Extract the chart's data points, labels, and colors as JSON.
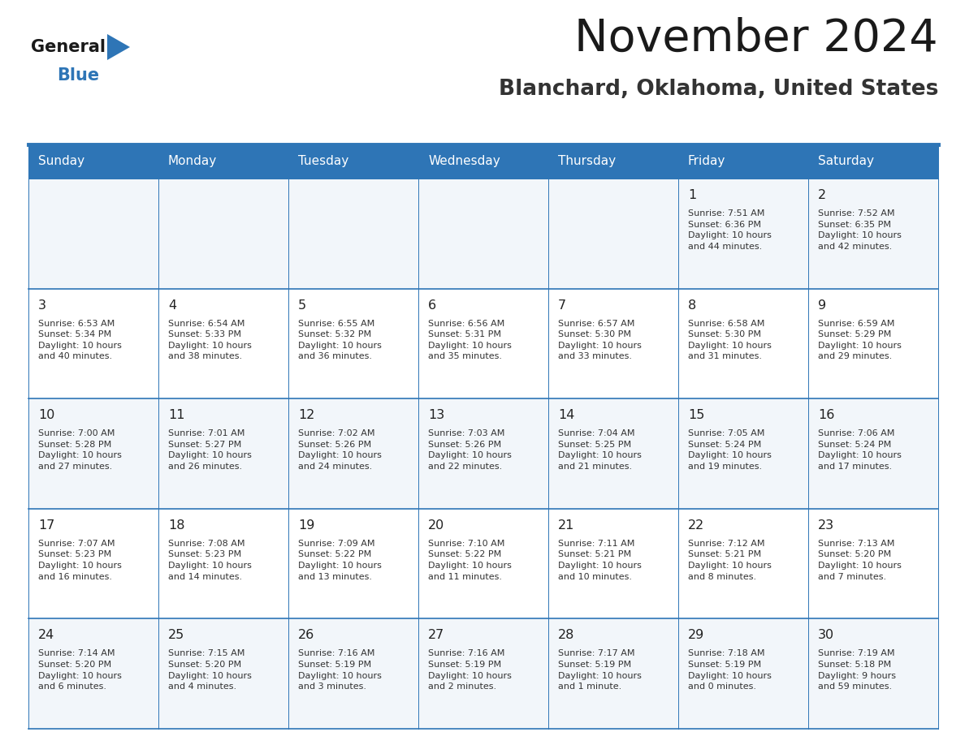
{
  "title": "November 2024",
  "subtitle": "Blanchard, Oklahoma, United States",
  "header_color": "#2E75B6",
  "header_text_color": "#FFFFFF",
  "border_color": "#2E75B6",
  "day_names": [
    "Sunday",
    "Monday",
    "Tuesday",
    "Wednesday",
    "Thursday",
    "Friday",
    "Saturday"
  ],
  "cell_text_color": "#333333",
  "num_rows": 5,
  "num_cols": 7,
  "logo_color": "#2E75B6",
  "calendar_data": [
    [
      "",
      "",
      "",
      "",
      "",
      "1\nSunrise: 7:51 AM\nSunset: 6:36 PM\nDaylight: 10 hours\nand 44 minutes.",
      "2\nSunrise: 7:52 AM\nSunset: 6:35 PM\nDaylight: 10 hours\nand 42 minutes."
    ],
    [
      "3\nSunrise: 6:53 AM\nSunset: 5:34 PM\nDaylight: 10 hours\nand 40 minutes.",
      "4\nSunrise: 6:54 AM\nSunset: 5:33 PM\nDaylight: 10 hours\nand 38 minutes.",
      "5\nSunrise: 6:55 AM\nSunset: 5:32 PM\nDaylight: 10 hours\nand 36 minutes.",
      "6\nSunrise: 6:56 AM\nSunset: 5:31 PM\nDaylight: 10 hours\nand 35 minutes.",
      "7\nSunrise: 6:57 AM\nSunset: 5:30 PM\nDaylight: 10 hours\nand 33 minutes.",
      "8\nSunrise: 6:58 AM\nSunset: 5:30 PM\nDaylight: 10 hours\nand 31 minutes.",
      "9\nSunrise: 6:59 AM\nSunset: 5:29 PM\nDaylight: 10 hours\nand 29 minutes."
    ],
    [
      "10\nSunrise: 7:00 AM\nSunset: 5:28 PM\nDaylight: 10 hours\nand 27 minutes.",
      "11\nSunrise: 7:01 AM\nSunset: 5:27 PM\nDaylight: 10 hours\nand 26 minutes.",
      "12\nSunrise: 7:02 AM\nSunset: 5:26 PM\nDaylight: 10 hours\nand 24 minutes.",
      "13\nSunrise: 7:03 AM\nSunset: 5:26 PM\nDaylight: 10 hours\nand 22 minutes.",
      "14\nSunrise: 7:04 AM\nSunset: 5:25 PM\nDaylight: 10 hours\nand 21 minutes.",
      "15\nSunrise: 7:05 AM\nSunset: 5:24 PM\nDaylight: 10 hours\nand 19 minutes.",
      "16\nSunrise: 7:06 AM\nSunset: 5:24 PM\nDaylight: 10 hours\nand 17 minutes."
    ],
    [
      "17\nSunrise: 7:07 AM\nSunset: 5:23 PM\nDaylight: 10 hours\nand 16 minutes.",
      "18\nSunrise: 7:08 AM\nSunset: 5:23 PM\nDaylight: 10 hours\nand 14 minutes.",
      "19\nSunrise: 7:09 AM\nSunset: 5:22 PM\nDaylight: 10 hours\nand 13 minutes.",
      "20\nSunrise: 7:10 AM\nSunset: 5:22 PM\nDaylight: 10 hours\nand 11 minutes.",
      "21\nSunrise: 7:11 AM\nSunset: 5:21 PM\nDaylight: 10 hours\nand 10 minutes.",
      "22\nSunrise: 7:12 AM\nSunset: 5:21 PM\nDaylight: 10 hours\nand 8 minutes.",
      "23\nSunrise: 7:13 AM\nSunset: 5:20 PM\nDaylight: 10 hours\nand 7 minutes."
    ],
    [
      "24\nSunrise: 7:14 AM\nSunset: 5:20 PM\nDaylight: 10 hours\nand 6 minutes.",
      "25\nSunrise: 7:15 AM\nSunset: 5:20 PM\nDaylight: 10 hours\nand 4 minutes.",
      "26\nSunrise: 7:16 AM\nSunset: 5:19 PM\nDaylight: 10 hours\nand 3 minutes.",
      "27\nSunrise: 7:16 AM\nSunset: 5:19 PM\nDaylight: 10 hours\nand 2 minutes.",
      "28\nSunrise: 7:17 AM\nSunset: 5:19 PM\nDaylight: 10 hours\nand 1 minute.",
      "29\nSunrise: 7:18 AM\nSunset: 5:19 PM\nDaylight: 10 hours\nand 0 minutes.",
      "30\nSunrise: 7:19 AM\nSunset: 5:18 PM\nDaylight: 9 hours\nand 59 minutes."
    ]
  ]
}
